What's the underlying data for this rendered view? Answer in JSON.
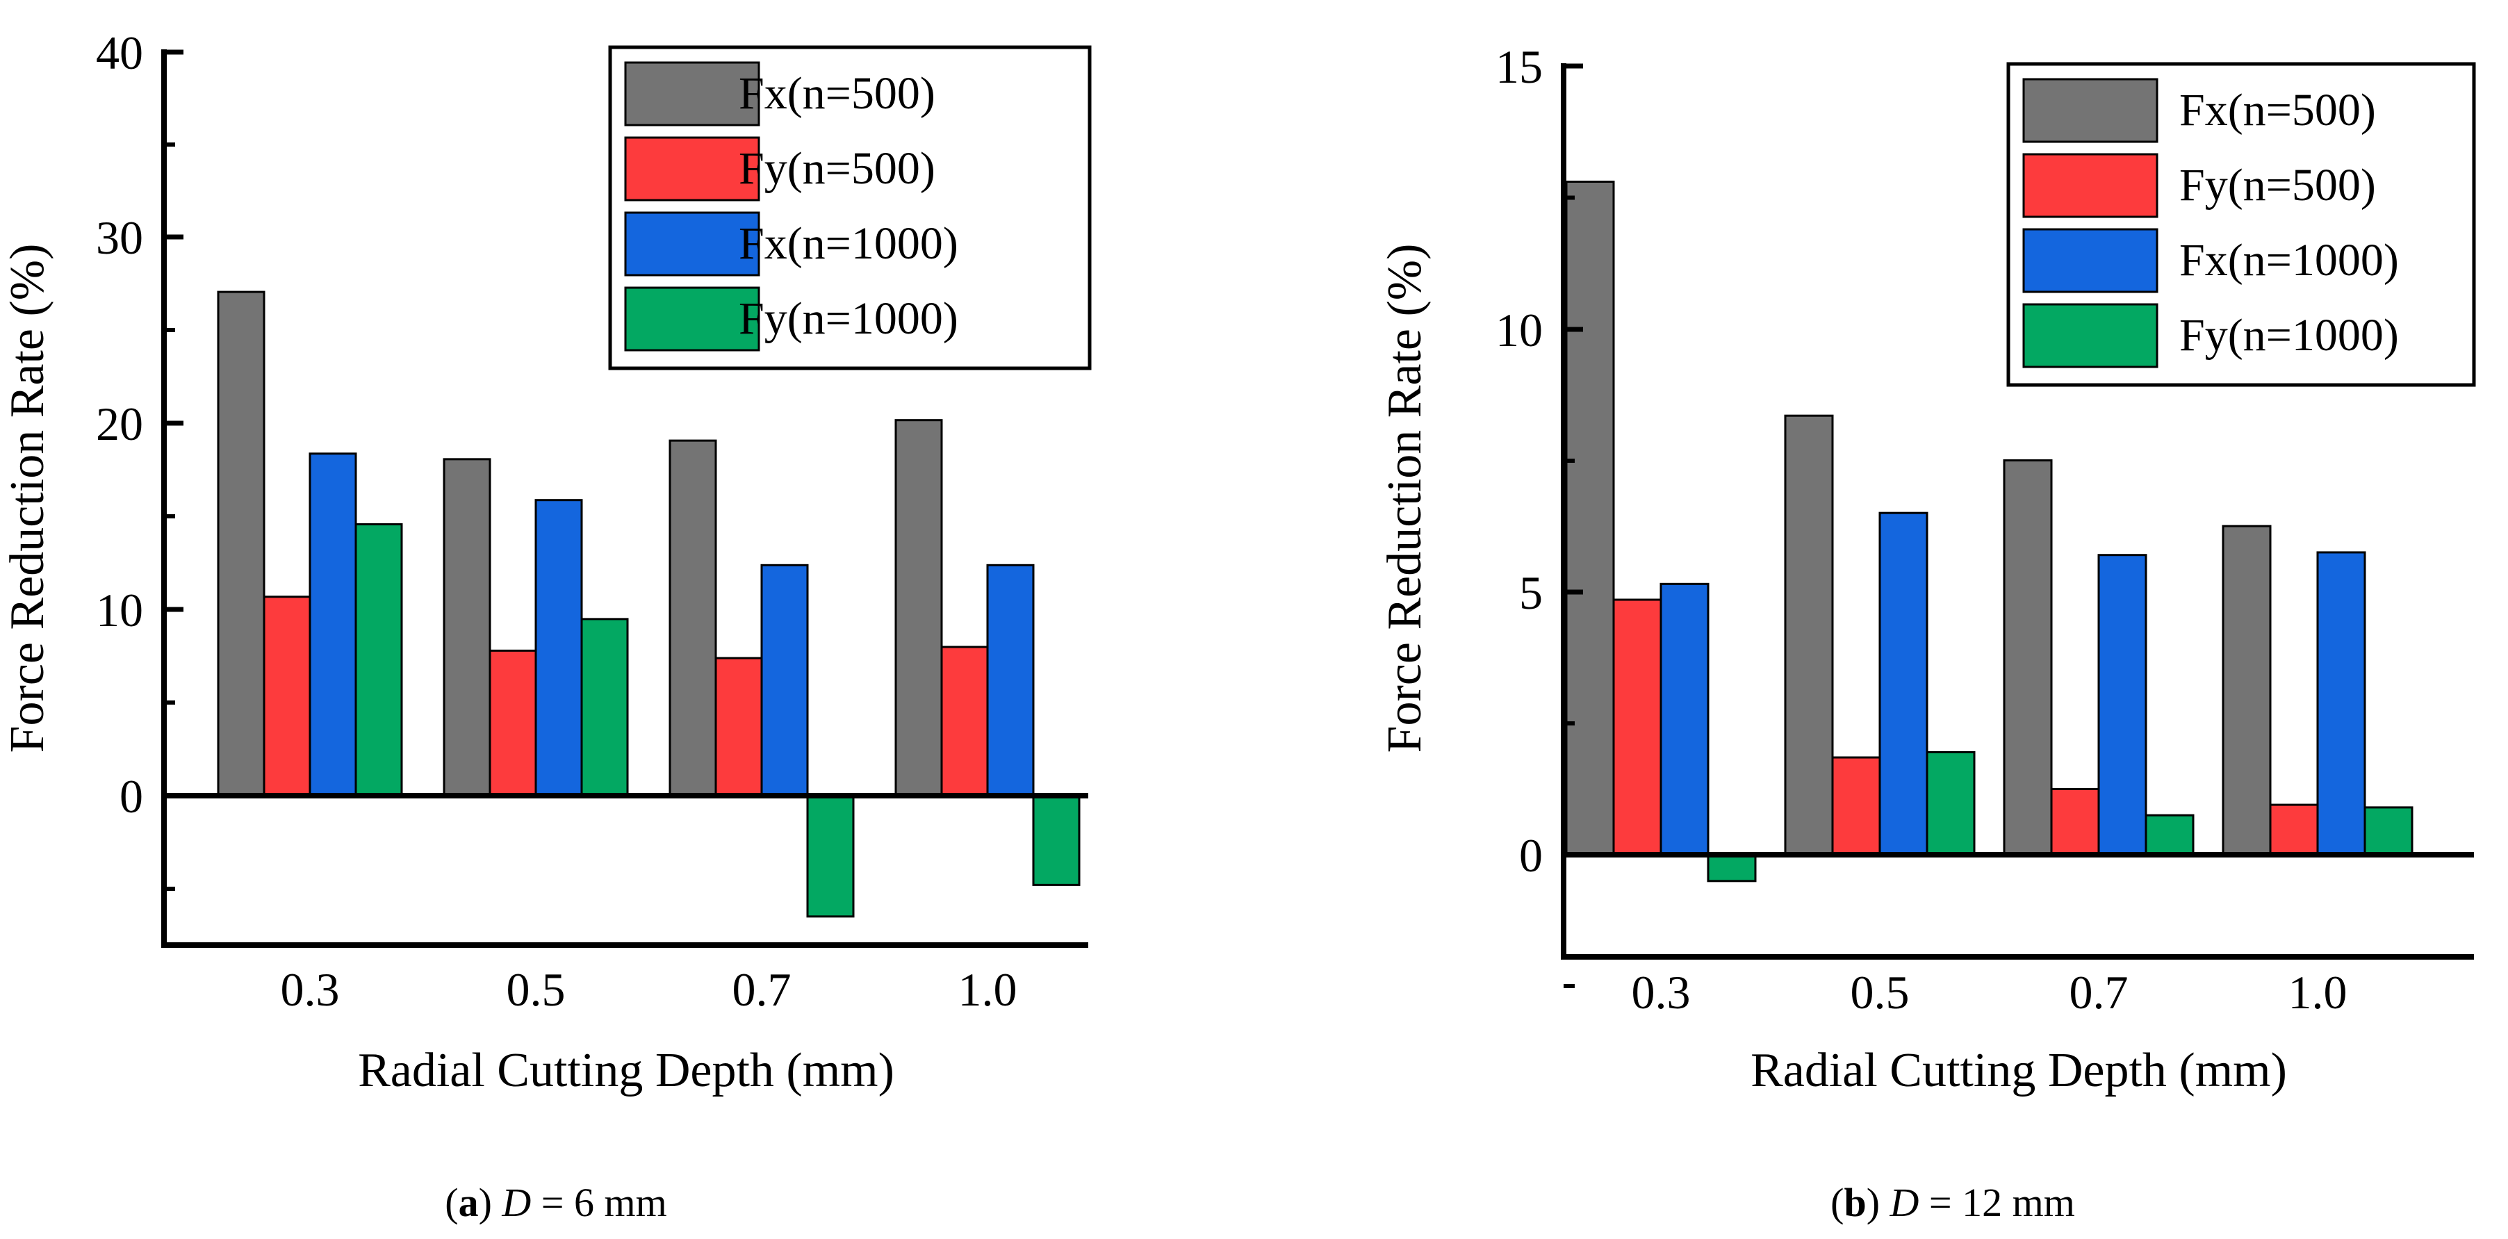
{
  "chart_data": [
    {
      "type": "bar",
      "caption": {
        "letter": "a",
        "open": "(",
        "close": ")",
        "var": "D",
        "rest": " = 6 mm"
      },
      "xlabel": "Radial Cutting Depth (mm)",
      "ylabel": "Force Reduction Rate (%)",
      "categories": [
        "0.3",
        "0.5",
        "0.7",
        "1.0"
      ],
      "ylim": [
        -8,
        40
      ],
      "yticks": [
        "0",
        "10",
        "20",
        "30",
        "40"
      ],
      "grid": false,
      "legend_position": "top-right",
      "series": [
        {
          "name": "Fx(n=500)",
          "color": "#747474",
          "values": [
            27.1,
            18.1,
            19.1,
            20.2
          ]
        },
        {
          "name": "Fy(n=500)",
          "color": "#fd3b3d",
          "values": [
            10.7,
            7.8,
            7.4,
            8.0
          ]
        },
        {
          "name": "Fx(n=1000)",
          "color": "#1466de",
          "values": [
            18.4,
            15.9,
            12.4,
            12.4
          ]
        },
        {
          "name": "Fy(n=1000)",
          "color": "#03a862",
          "values": [
            14.6,
            9.5,
            -6.5,
            -4.8
          ]
        }
      ]
    },
    {
      "type": "bar",
      "caption": {
        "letter": "b",
        "open": "(",
        "close": ")",
        "var": "D",
        "rest": " = 12 mm"
      },
      "xlabel": "Radial Cutting Depth (mm)",
      "ylabel": "Force Reduction Rate (%)",
      "categories": [
        "0.3",
        "0.5",
        "0.7",
        "1.0"
      ],
      "ylim": [
        -2,
        15
      ],
      "yticks": [
        "0",
        "5",
        "10",
        "15"
      ],
      "grid": false,
      "legend_position": "top-right",
      "series": [
        {
          "name": "Fx(n=500)",
          "color": "#747474",
          "values": [
            12.8,
            8.35,
            7.5,
            6.25
          ]
        },
        {
          "name": "Fy(n=500)",
          "color": "#fd3b3d",
          "values": [
            4.85,
            1.85,
            1.25,
            0.95
          ]
        },
        {
          "name": "Fx(n=1000)",
          "color": "#1466de",
          "values": [
            5.15,
            6.5,
            5.7,
            5.75
          ]
        },
        {
          "name": "Fy(n=1000)",
          "color": "#03a862",
          "values": [
            -0.5,
            1.95,
            0.75,
            0.9
          ]
        }
      ]
    }
  ]
}
